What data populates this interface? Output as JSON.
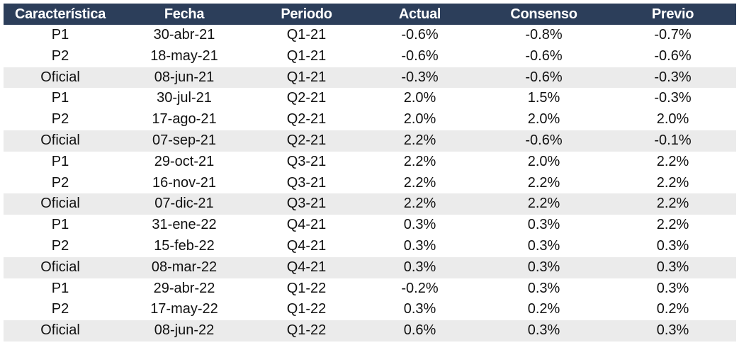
{
  "table": {
    "headers": [
      "Característica",
      "Fecha",
      "Periodo",
      "Actual",
      "Consenso",
      "Previo"
    ],
    "rows": [
      {
        "caracteristica": "P1",
        "fecha": "30-abr-21",
        "periodo": "Q1-21",
        "actual": "-0.6%",
        "consenso": "-0.8%",
        "previo": "-0.7%"
      },
      {
        "caracteristica": "P2",
        "fecha": "18-may-21",
        "periodo": "Q1-21",
        "actual": "-0.6%",
        "consenso": "-0.6%",
        "previo": "-0.6%"
      },
      {
        "caracteristica": "Oficial",
        "fecha": "08-jun-21",
        "periodo": "Q1-21",
        "actual": "-0.3%",
        "consenso": "-0.6%",
        "previo": "-0.3%"
      },
      {
        "caracteristica": "P1",
        "fecha": "30-jul-21",
        "periodo": "Q2-21",
        "actual": "2.0%",
        "consenso": "1.5%",
        "previo": "-0.3%"
      },
      {
        "caracteristica": "P2",
        "fecha": "17-ago-21",
        "periodo": "Q2-21",
        "actual": "2.0%",
        "consenso": "2.0%",
        "previo": "2.0%"
      },
      {
        "caracteristica": "Oficial",
        "fecha": "07-sep-21",
        "periodo": "Q2-21",
        "actual": "2.2%",
        "consenso": "-0.6%",
        "previo": "-0.1%"
      },
      {
        "caracteristica": "P1",
        "fecha": "29-oct-21",
        "periodo": "Q3-21",
        "actual": "2.2%",
        "consenso": "2.0%",
        "previo": "2.2%"
      },
      {
        "caracteristica": "P2",
        "fecha": "16-nov-21",
        "periodo": "Q3-21",
        "actual": "2.2%",
        "consenso": "2.2%",
        "previo": "2.2%"
      },
      {
        "caracteristica": "Oficial",
        "fecha": "07-dic-21",
        "periodo": "Q3-21",
        "actual": "2.2%",
        "consenso": "2.2%",
        "previo": "2.2%"
      },
      {
        "caracteristica": "P1",
        "fecha": "31-ene-22",
        "periodo": "Q4-21",
        "actual": "0.3%",
        "consenso": "0.3%",
        "previo": "2.2%"
      },
      {
        "caracteristica": "P2",
        "fecha": "15-feb-22",
        "periodo": "Q4-21",
        "actual": "0.3%",
        "consenso": "0.3%",
        "previo": "0.3%"
      },
      {
        "caracteristica": "Oficial",
        "fecha": "08-mar-22",
        "periodo": "Q4-21",
        "actual": "0.3%",
        "consenso": "0.3%",
        "previo": "0.3%"
      },
      {
        "caracteristica": "P1",
        "fecha": "29-abr-22",
        "periodo": "Q1-22",
        "actual": "-0.2%",
        "consenso": "0.3%",
        "previo": "0.3%"
      },
      {
        "caracteristica": "P2",
        "fecha": "17-may-22",
        "periodo": "Q1-22",
        "actual": "0.3%",
        "consenso": "0.2%",
        "previo": "0.2%"
      },
      {
        "caracteristica": "Oficial",
        "fecha": "08-jun-22",
        "periodo": "Q1-22",
        "actual": "0.6%",
        "consenso": "0.3%",
        "previo": "0.3%"
      }
    ]
  },
  "colors": {
    "header_bg": "#2c3e5a",
    "header_text": "#ffffff",
    "shaded_row": "#ebebeb"
  }
}
